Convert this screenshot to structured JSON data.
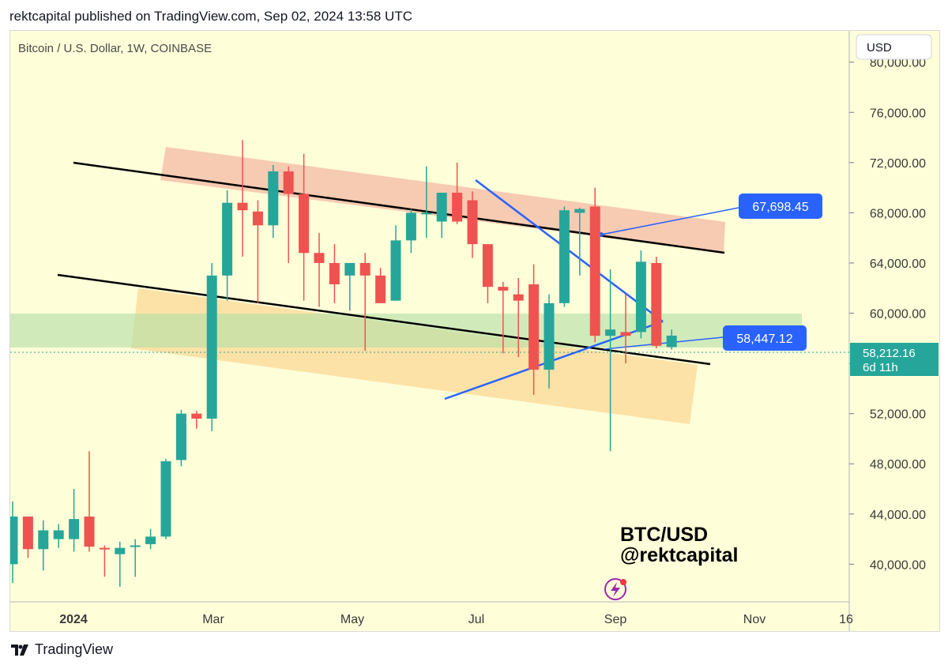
{
  "header": {
    "published": "rektcapital published on TradingView.com, Sep 02, 2024 13:58 UTC"
  },
  "footer": {
    "brand": "TradingView",
    "logo_icon": "tradingview-logo-icon"
  },
  "chart_data": {
    "type": "candlestick",
    "title": "Bitcoin / U.S. Dollar, 1W, COINBASE",
    "currency": "USD",
    "ylim": [
      37000,
      82500
    ],
    "y_ticks": [
      40000,
      44000,
      48000,
      52000,
      56000,
      60000,
      64000,
      68000,
      72000,
      76000,
      80000
    ],
    "y_tick_labels": [
      "40,000.00",
      "44,000.00",
      "48,000.00",
      "52,000.00",
      "56,000.00",
      "60,000.00",
      "64,000.00",
      "68,000.00",
      "72,000.00",
      "76,000.00",
      "80,000.00"
    ],
    "x_labels": [
      "2024",
      "Mar",
      "May",
      "Jul",
      "Sep",
      "Nov",
      "16"
    ],
    "candles": [
      {
        "o": 40000,
        "h": 45000,
        "l": 38500,
        "c": 43800
      },
      {
        "o": 43800,
        "h": 43800,
        "l": 40500,
        "c": 41200
      },
      {
        "o": 41200,
        "h": 43500,
        "l": 39500,
        "c": 42700
      },
      {
        "o": 42000,
        "h": 43200,
        "l": 41300,
        "c": 42700
      },
      {
        "o": 42000,
        "h": 46000,
        "l": 41000,
        "c": 43600
      },
      {
        "o": 43800,
        "h": 49000,
        "l": 41000,
        "c": 41400
      },
      {
        "o": 41300,
        "h": 41500,
        "l": 39000,
        "c": 41200
      },
      {
        "o": 40800,
        "h": 41800,
        "l": 38200,
        "c": 41300
      },
      {
        "o": 41500,
        "h": 42000,
        "l": 39000,
        "c": 41500
      },
      {
        "o": 41600,
        "h": 42800,
        "l": 41200,
        "c": 42200
      },
      {
        "o": 42200,
        "h": 48400,
        "l": 42000,
        "c": 48200
      },
      {
        "o": 48300,
        "h": 52300,
        "l": 47800,
        "c": 52000
      },
      {
        "o": 52000,
        "h": 52200,
        "l": 50800,
        "c": 51600
      },
      {
        "o": 51600,
        "h": 64000,
        "l": 50600,
        "c": 63000
      },
      {
        "o": 63000,
        "h": 69800,
        "l": 61000,
        "c": 68800
      },
      {
        "o": 68800,
        "h": 73800,
        "l": 64500,
        "c": 68200
      },
      {
        "o": 68100,
        "h": 69000,
        "l": 60800,
        "c": 67000
      },
      {
        "o": 67000,
        "h": 71800,
        "l": 66000,
        "c": 71300
      },
      {
        "o": 71300,
        "h": 71700,
        "l": 64000,
        "c": 69500
      },
      {
        "o": 69500,
        "h": 72700,
        "l": 61000,
        "c": 64800
      },
      {
        "o": 64800,
        "h": 66400,
        "l": 60500,
        "c": 64000
      },
      {
        "o": 64000,
        "h": 65500,
        "l": 60800,
        "c": 62300
      },
      {
        "o": 63000,
        "h": 64000,
        "l": 60200,
        "c": 64000
      },
      {
        "o": 64000,
        "h": 64800,
        "l": 57000,
        "c": 63000
      },
      {
        "o": 63000,
        "h": 63600,
        "l": 60800,
        "c": 60800
      },
      {
        "o": 61000,
        "h": 67000,
        "l": 61000,
        "c": 65800
      },
      {
        "o": 65800,
        "h": 68300,
        "l": 64800,
        "c": 68000
      },
      {
        "o": 68000,
        "h": 71700,
        "l": 66000,
        "c": 68000
      },
      {
        "o": 67300,
        "h": 69500,
        "l": 66000,
        "c": 69600
      },
      {
        "o": 69600,
        "h": 72000,
        "l": 67100,
        "c": 67300
      },
      {
        "o": 69000,
        "h": 69700,
        "l": 64400,
        "c": 65500
      },
      {
        "o": 65500,
        "h": 65500,
        "l": 60800,
        "c": 62100
      },
      {
        "o": 62100,
        "h": 62500,
        "l": 56800,
        "c": 61800
      },
      {
        "o": 61500,
        "h": 62800,
        "l": 56500,
        "c": 61000
      },
      {
        "o": 62300,
        "h": 63900,
        "l": 53500,
        "c": 55500
      },
      {
        "o": 55500,
        "h": 61500,
        "l": 54000,
        "c": 60800
      },
      {
        "o": 60800,
        "h": 68500,
        "l": 60500,
        "c": 68200
      },
      {
        "o": 68000,
        "h": 68400,
        "l": 63000,
        "c": 68300
      },
      {
        "o": 68500,
        "h": 70000,
        "l": 57700,
        "c": 58200
      },
      {
        "o": 58200,
        "h": 63500,
        "l": 49000,
        "c": 58700
      },
      {
        "o": 58500,
        "h": 61500,
        "l": 56000,
        "c": 58200
      },
      {
        "o": 58500,
        "h": 65000,
        "l": 58000,
        "c": 64100
      },
      {
        "o": 64000,
        "h": 64500,
        "l": 57200,
        "c": 57400
      },
      {
        "o": 57300,
        "h": 58700,
        "l": 57100,
        "c": 58212
      }
    ],
    "current_price": {
      "value": "58,212.16",
      "countdown": "6d 11h"
    },
    "annotations": {
      "upper_level": "67,698.45",
      "lower_level": "58,447.12",
      "watermark_line1": "BTC/USD",
      "watermark_line2": "@rektcapital"
    },
    "colors": {
      "background": "#fefed9",
      "up": "#26a69a",
      "down": "#ef5350",
      "upper_zone": "#f6c4ad",
      "lower_zone": "#fbdf9f",
      "support_band": "#c6e5b4",
      "trendline": "#000000",
      "pattern": "#2962ff",
      "label_bg": "#2962ff",
      "price_tag": "#26a69a"
    },
    "icons": [
      "lightning-icon"
    ]
  }
}
